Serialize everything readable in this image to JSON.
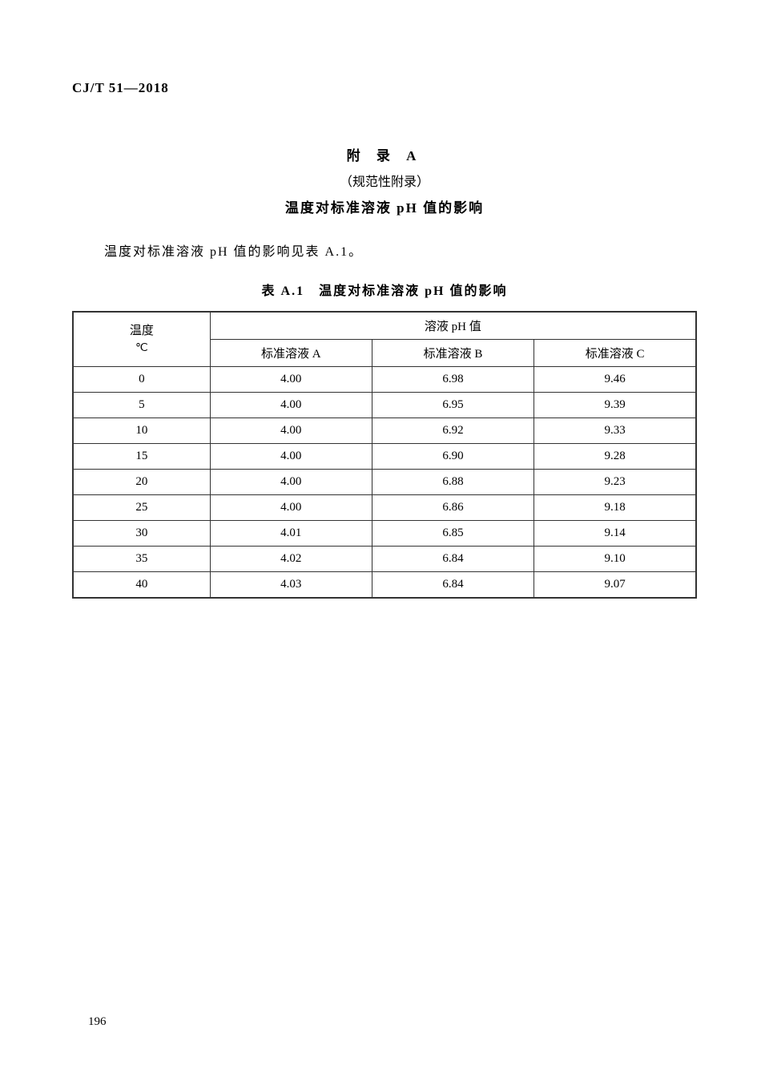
{
  "document": {
    "id": "CJ/T 51—2018",
    "appendix_label": "附 录 A",
    "appendix_type": "（规范性附录）",
    "appendix_subject": "温度对标准溶液 pH 值的影响",
    "intro": "温度对标准溶液 pH 值的影响见表 A.1。",
    "table_title": "表 A.1　温度对标准溶液 pH 值的影响",
    "page_number": "196"
  },
  "table": {
    "header": {
      "temp_label": "温度",
      "temp_unit": "℃",
      "ph_group_label": "溶液 pH 值",
      "col_a": "标准溶液 A",
      "col_b": "标准溶液 B",
      "col_c": "标准溶液 C"
    },
    "rows": [
      {
        "temp": "0",
        "a": "4.00",
        "b": "6.98",
        "c": "9.46"
      },
      {
        "temp": "5",
        "a": "4.00",
        "b": "6.95",
        "c": "9.39"
      },
      {
        "temp": "10",
        "a": "4.00",
        "b": "6.92",
        "c": "9.33"
      },
      {
        "temp": "15",
        "a": "4.00",
        "b": "6.90",
        "c": "9.28"
      },
      {
        "temp": "20",
        "a": "4.00",
        "b": "6.88",
        "c": "9.23"
      },
      {
        "temp": "25",
        "a": "4.00",
        "b": "6.86",
        "c": "9.18"
      },
      {
        "temp": "30",
        "a": "4.01",
        "b": "6.85",
        "c": "9.14"
      },
      {
        "temp": "35",
        "a": "4.02",
        "b": "6.84",
        "c": "9.10"
      },
      {
        "temp": "40",
        "a": "4.03",
        "b": "6.84",
        "c": "9.07"
      }
    ],
    "styling": {
      "border_color": "#333333",
      "outer_border_width": 2,
      "inner_border_width": 1,
      "background_color": "#ffffff",
      "font_size": 15,
      "header_font_weight": "normal",
      "col_widths_pct": [
        22,
        26,
        26,
        26
      ]
    }
  }
}
